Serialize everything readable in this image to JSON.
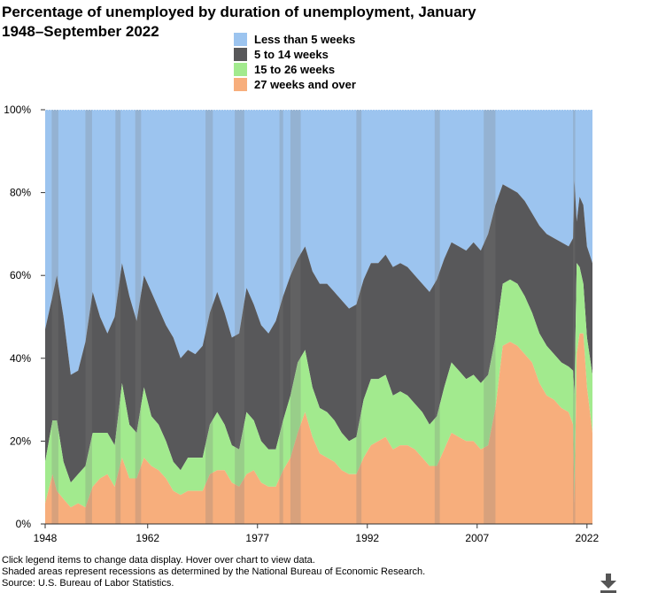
{
  "title": "Percentage of unemployed by duration of unemployment, January 1948–September 2022",
  "notes": [
    "Click legend items to change data display. Hover over chart to view data.",
    "Shaded areas represent recessions as determined by the National Bureau of Economic Research.",
    "Source: U.S. Bureau of Labor Statistics."
  ],
  "download_icon": "download-arrow-icon",
  "chart_data": {
    "type": "area",
    "stacked": true,
    "title": "Percentage of unemployed by duration of unemployment, January 1948–September 2022",
    "xlabel": "",
    "ylabel": "",
    "xlim": [
      1948,
      2022.75
    ],
    "ylim": [
      0,
      100
    ],
    "x_ticks": [
      1948,
      1962,
      1977,
      1992,
      2007,
      2022
    ],
    "y_ticks": [
      0,
      20,
      40,
      60,
      80,
      100
    ],
    "y_tick_format": "percent",
    "grid": false,
    "legend_placement": "top-center",
    "x": [
      1948,
      1949,
      1949.6,
      1950.5,
      1951.5,
      1952.5,
      1953.5,
      1954.5,
      1955.5,
      1956.5,
      1957.5,
      1958.5,
      1959.5,
      1960.5,
      1961.5,
      1962.5,
      1963.5,
      1964.5,
      1965.5,
      1966.5,
      1967.5,
      1968.5,
      1969.5,
      1970.5,
      1971.5,
      1972.5,
      1973.5,
      1974.5,
      1975.5,
      1976.5,
      1977.5,
      1978.5,
      1979.5,
      1980.5,
      1981.5,
      1982.5,
      1983.5,
      1984.5,
      1985.5,
      1986.5,
      1987.5,
      1988.5,
      1989.5,
      1990.5,
      1991.5,
      1992.5,
      1993.5,
      1994.5,
      1995.5,
      1996.5,
      1997.5,
      1998.5,
      1999.5,
      2000.5,
      2001.5,
      2002.5,
      2003.5,
      2004.5,
      2005.5,
      2006.5,
      2007.5,
      2008.5,
      2009.5,
      2010.5,
      2011.5,
      2012.5,
      2013.5,
      2014.5,
      2015.5,
      2016.5,
      2017.5,
      2018.5,
      2019.5,
      2020.1,
      2020.3,
      2020.6,
      2021,
      2021.5,
      2022,
      2022.75
    ],
    "series": [
      {
        "name": "Less than 5 weeks",
        "color": "#9cc4ef",
        "values": [
          53,
          45,
          40,
          50,
          64,
          63,
          56,
          44,
          50,
          54,
          50,
          37,
          45,
          51,
          40,
          44,
          48,
          52,
          55,
          60,
          58,
          59,
          57,
          49,
          44,
          49,
          55,
          54,
          43,
          47,
          52,
          54,
          51,
          45,
          40,
          36,
          33,
          39,
          42,
          42,
          44,
          46,
          48,
          47,
          41,
          37,
          37,
          35,
          38,
          37,
          38,
          40,
          42,
          44,
          41,
          36,
          32,
          33,
          34,
          32,
          34,
          30,
          23,
          18,
          19,
          20,
          22,
          25,
          28,
          30,
          31,
          32,
          33,
          31,
          17,
          27,
          21,
          23,
          33,
          37
        ]
      },
      {
        "name": "5 to 14 weeks",
        "color": "#58585a",
        "values": [
          32,
          30,
          35,
          35,
          26,
          25,
          30,
          34,
          28,
          24,
          31,
          29,
          31,
          27,
          27,
          30,
          28,
          28,
          30,
          27,
          26,
          25,
          27,
          27,
          29,
          27,
          26,
          28,
          30,
          28,
          28,
          28,
          31,
          30,
          29,
          25,
          25,
          28,
          30,
          31,
          31,
          32,
          32,
          32,
          29,
          28,
          28,
          29,
          31,
          31,
          31,
          31,
          31,
          32,
          33,
          31,
          29,
          30,
          31,
          32,
          32,
          34,
          32,
          24,
          22,
          22,
          23,
          24,
          26,
          27,
          28,
          29,
          29,
          32,
          52,
          10,
          17,
          19,
          22,
          27
        ]
      },
      {
        "name": "15 to 26 weeks",
        "color": "#a2ea8e",
        "values": [
          10,
          13,
          17,
          9,
          6,
          7,
          10,
          13,
          11,
          10,
          10,
          18,
          13,
          11,
          17,
          12,
          11,
          9,
          7,
          6,
          8,
          8,
          8,
          12,
          14,
          11,
          9,
          9,
          15,
          12,
          10,
          9,
          9,
          12,
          15,
          17,
          15,
          12,
          11,
          11,
          10,
          9,
          8,
          9,
          14,
          16,
          15,
          15,
          13,
          13,
          12,
          11,
          11,
          10,
          12,
          15,
          17,
          16,
          15,
          16,
          16,
          17,
          17,
          15,
          15,
          15,
          14,
          12,
          12,
          12,
          11,
          11,
          11,
          13,
          26,
          22,
          16,
          12,
          12,
          14
        ]
      },
      {
        "name": "27 weeks and over",
        "color": "#f7ae7c",
        "values": [
          5,
          12,
          8,
          6,
          4,
          5,
          4,
          9,
          11,
          12,
          9,
          16,
          11,
          11,
          16,
          14,
          13,
          11,
          8,
          7,
          8,
          8,
          8,
          12,
          13,
          13,
          10,
          9,
          12,
          13,
          10,
          9,
          9,
          13,
          16,
          22,
          27,
          21,
          17,
          16,
          15,
          13,
          12,
          12,
          16,
          19,
          20,
          21,
          18,
          19,
          19,
          18,
          16,
          14,
          14,
          18,
          22,
          21,
          20,
          20,
          18,
          19,
          28,
          43,
          44,
          43,
          41,
          39,
          34,
          31,
          30,
          28,
          27,
          24,
          5,
          41,
          46,
          46,
          33,
          22
        ]
      }
    ],
    "recessions": [
      [
        1948.9,
        1949.8
      ],
      [
        1953.5,
        1954.4
      ],
      [
        1957.6,
        1958.3
      ],
      [
        1960.3,
        1961.1
      ],
      [
        1969.9,
        1970.9
      ],
      [
        1973.9,
        1975.2
      ],
      [
        1980.0,
        1980.5
      ],
      [
        1981.5,
        1982.9
      ],
      [
        1990.5,
        1991.2
      ],
      [
        2001.2,
        2001.9
      ],
      [
        2007.9,
        2009.5
      ],
      [
        2020.1,
        2020.4
      ]
    ]
  }
}
